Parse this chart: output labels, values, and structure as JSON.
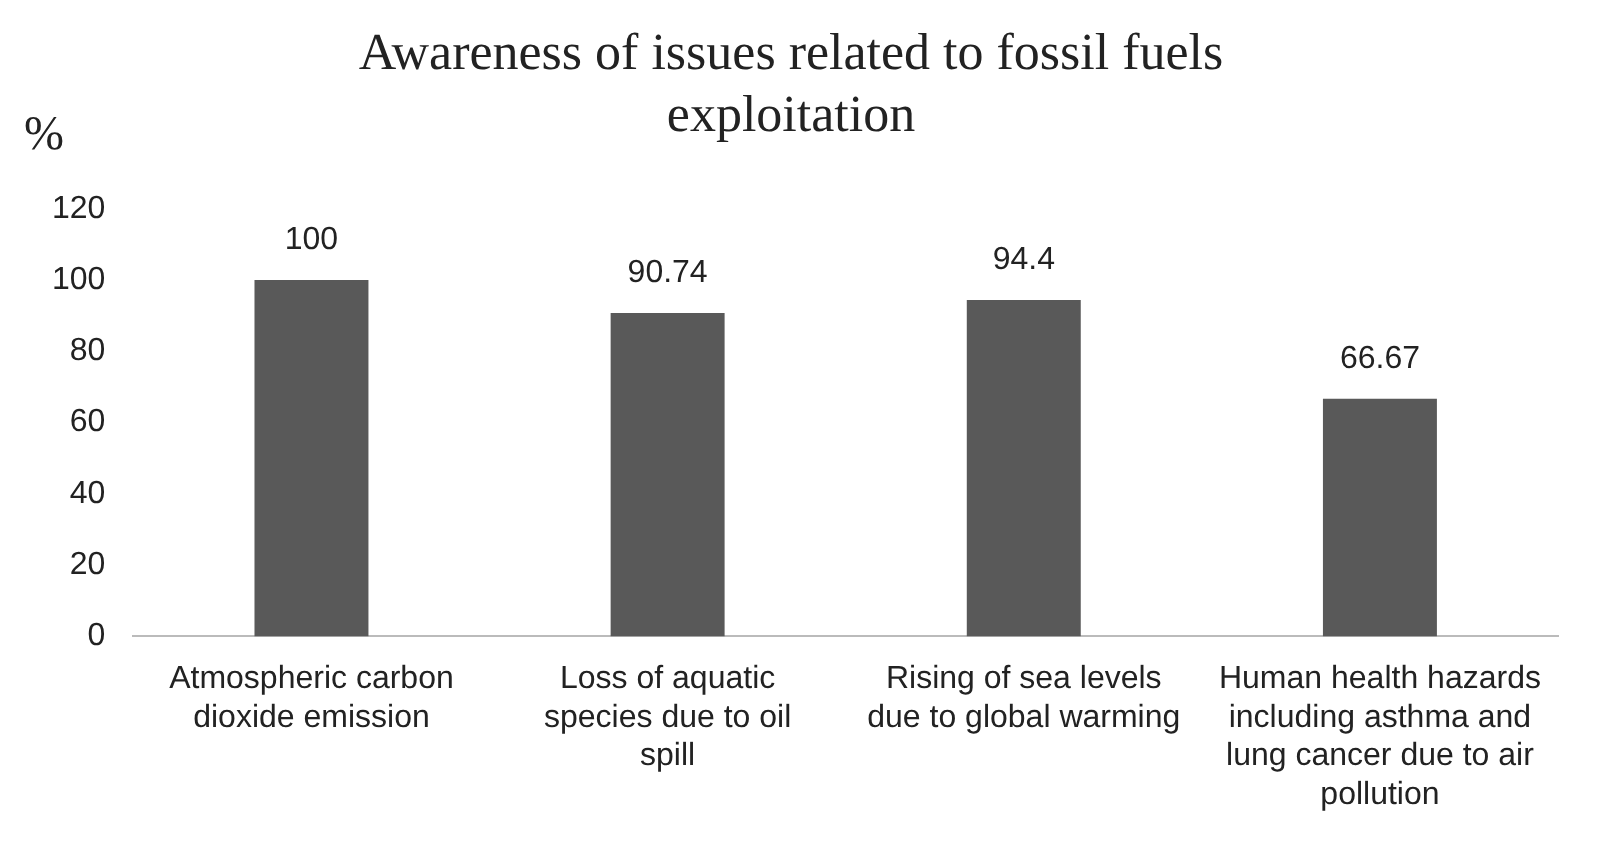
{
  "chart_data": {
    "type": "bar",
    "title": "Awareness of issues related to fossil fuels exploitation",
    "ylabel": "%",
    "categories": [
      "Atmospheric carbon dioxide emission",
      "Loss of aquatic species due to oil spill",
      "Rising of sea levels due to global warming",
      "Human health hazards including asthma and lung cancer due to air pollution"
    ],
    "values": [
      100,
      90.74,
      94.4,
      66.67
    ],
    "color": "#595959",
    "ylim": [
      0,
      120
    ],
    "yticks": [
      0,
      20,
      40,
      60,
      80,
      100,
      120
    ],
    "grid": false,
    "legend": false,
    "data_labels": true
  }
}
